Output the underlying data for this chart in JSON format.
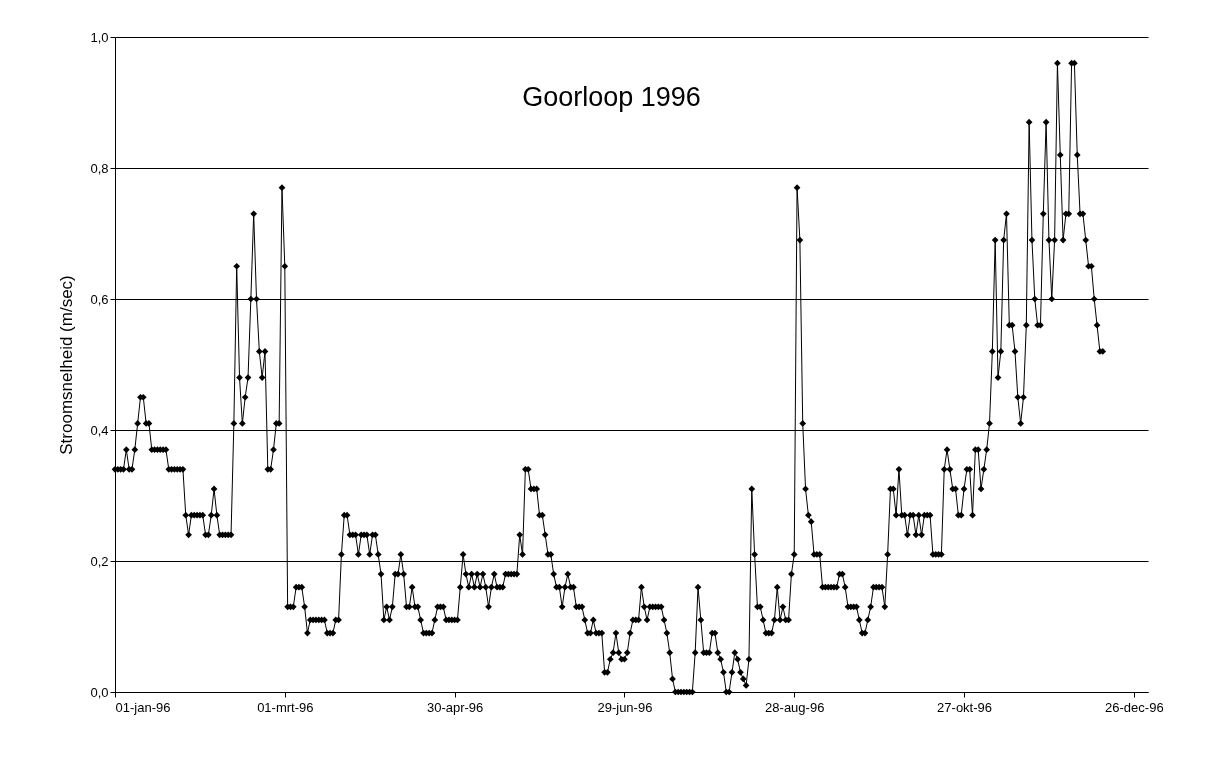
{
  "chart_data": {
    "type": "line",
    "title": "Goorloop 1996",
    "ylabel": "Stroomsnelheid (m/sec)",
    "xlim": [
      "1996-01-01",
      "1996-12-31"
    ],
    "xticks": [
      {
        "value": "1996-01-01",
        "label": "01-jan-96"
      },
      {
        "value": "1996-03-01",
        "label": "01-mrt-96"
      },
      {
        "value": "1996-04-30",
        "label": "30-apr-96"
      },
      {
        "value": "1996-06-29",
        "label": "29-jun-96"
      },
      {
        "value": "1996-08-28",
        "label": "28-aug-96"
      },
      {
        "value": "1996-10-27",
        "label": "27-okt-96"
      },
      {
        "value": "1996-12-26",
        "label": "26-dec-96"
      }
    ],
    "ylim": [
      0,
      1
    ],
    "yticks": [
      {
        "value": 0,
        "label": "0,0"
      },
      {
        "value": 0.2,
        "label": "0,2"
      },
      {
        "value": 0.4,
        "label": "0,4"
      },
      {
        "value": 0.6,
        "label": "0,6"
      },
      {
        "value": 0.8,
        "label": "0,8"
      },
      {
        "value": 1,
        "label": "1,0"
      }
    ],
    "grid": "y",
    "marker": "diamond",
    "line_style": "solid",
    "legend": false,
    "x": [
      "1996-01-01",
      "1996-01-02",
      "1996-01-03",
      "1996-01-04",
      "1996-01-05",
      "1996-01-06",
      "1996-01-07",
      "1996-01-08",
      "1996-01-09",
      "1996-01-10",
      "1996-01-11",
      "1996-01-12",
      "1996-01-13",
      "1996-01-14",
      "1996-01-15",
      "1996-01-16",
      "1996-01-17",
      "1996-01-18",
      "1996-01-19",
      "1996-01-20",
      "1996-01-21",
      "1996-01-22",
      "1996-01-23",
      "1996-01-24",
      "1996-01-25",
      "1996-01-26",
      "1996-01-27",
      "1996-01-28",
      "1996-01-29",
      "1996-01-30",
      "1996-01-31",
      "1996-02-01",
      "1996-02-02",
      "1996-02-03",
      "1996-02-04",
      "1996-02-05",
      "1996-02-06",
      "1996-02-07",
      "1996-02-08",
      "1996-02-09",
      "1996-02-10",
      "1996-02-11",
      "1996-02-12",
      "1996-02-13",
      "1996-02-14",
      "1996-02-15",
      "1996-02-16",
      "1996-02-17",
      "1996-02-18",
      "1996-02-19",
      "1996-02-20",
      "1996-02-21",
      "1996-02-22",
      "1996-02-23",
      "1996-02-24",
      "1996-02-25",
      "1996-02-26",
      "1996-02-27",
      "1996-02-28",
      "1996-02-29",
      "1996-03-01",
      "1996-03-02",
      "1996-03-03",
      "1996-03-04",
      "1996-03-05",
      "1996-03-06",
      "1996-03-07",
      "1996-03-08",
      "1996-03-09",
      "1996-03-10",
      "1996-03-11",
      "1996-03-12",
      "1996-03-13",
      "1996-03-14",
      "1996-03-15",
      "1996-03-16",
      "1996-03-17",
      "1996-03-18",
      "1996-03-19",
      "1996-03-20",
      "1996-03-21",
      "1996-03-22",
      "1996-03-23",
      "1996-03-24",
      "1996-03-25",
      "1996-03-26",
      "1996-03-27",
      "1996-03-28",
      "1996-03-29",
      "1996-03-30",
      "1996-03-31",
      "1996-04-01",
      "1996-04-02",
      "1996-04-03",
      "1996-04-04",
      "1996-04-05",
      "1996-04-06",
      "1996-04-07",
      "1996-04-08",
      "1996-04-09",
      "1996-04-10",
      "1996-04-11",
      "1996-04-12",
      "1996-04-13",
      "1996-04-14",
      "1996-04-15",
      "1996-04-16",
      "1996-04-17",
      "1996-04-18",
      "1996-04-19",
      "1996-04-20",
      "1996-04-21",
      "1996-04-22",
      "1996-04-23",
      "1996-04-24",
      "1996-04-25",
      "1996-04-26",
      "1996-04-27",
      "1996-04-28",
      "1996-04-29",
      "1996-04-30",
      "1996-05-01",
      "1996-05-02",
      "1996-05-03",
      "1996-05-04",
      "1996-05-05",
      "1996-05-06",
      "1996-05-07",
      "1996-05-08",
      "1996-05-09",
      "1996-05-10",
      "1996-05-11",
      "1996-05-12",
      "1996-05-13",
      "1996-05-14",
      "1996-05-15",
      "1996-05-16",
      "1996-05-17",
      "1996-05-18",
      "1996-05-19",
      "1996-05-20",
      "1996-05-21",
      "1996-05-22",
      "1996-05-23",
      "1996-05-24",
      "1996-05-25",
      "1996-05-26",
      "1996-05-27",
      "1996-05-28",
      "1996-05-29",
      "1996-05-30",
      "1996-05-31",
      "1996-06-01",
      "1996-06-02",
      "1996-06-03",
      "1996-06-04",
      "1996-06-05",
      "1996-06-06",
      "1996-06-07",
      "1996-06-08",
      "1996-06-09",
      "1996-06-10",
      "1996-06-11",
      "1996-06-12",
      "1996-06-13",
      "1996-06-14",
      "1996-06-15",
      "1996-06-16",
      "1996-06-17",
      "1996-06-18",
      "1996-06-19",
      "1996-06-20",
      "1996-06-21",
      "1996-06-22",
      "1996-06-23",
      "1996-06-24",
      "1996-06-25",
      "1996-06-26",
      "1996-06-27",
      "1996-06-28",
      "1996-06-29",
      "1996-06-30",
      "1996-07-01",
      "1996-07-02",
      "1996-07-03",
      "1996-07-04",
      "1996-07-05",
      "1996-07-06",
      "1996-07-07",
      "1996-07-08",
      "1996-07-09",
      "1996-07-10",
      "1996-07-11",
      "1996-07-12",
      "1996-07-13",
      "1996-07-14",
      "1996-07-15",
      "1996-07-16",
      "1996-07-17",
      "1996-07-18",
      "1996-07-19",
      "1996-07-20",
      "1996-07-21",
      "1996-07-22",
      "1996-07-23",
      "1996-07-24",
      "1996-07-25",
      "1996-07-26",
      "1996-07-27",
      "1996-07-28",
      "1996-07-29",
      "1996-07-30",
      "1996-07-31",
      "1996-08-01",
      "1996-08-02",
      "1996-08-03",
      "1996-08-04",
      "1996-08-05",
      "1996-08-06",
      "1996-08-07",
      "1996-08-08",
      "1996-08-09",
      "1996-08-10",
      "1996-08-11",
      "1996-08-12",
      "1996-08-13",
      "1996-08-14",
      "1996-08-15",
      "1996-08-16",
      "1996-08-17",
      "1996-08-18",
      "1996-08-19",
      "1996-08-20",
      "1996-08-21",
      "1996-08-22",
      "1996-08-23",
      "1996-08-24",
      "1996-08-25",
      "1996-08-26",
      "1996-08-27",
      "1996-08-28",
      "1996-08-29",
      "1996-08-30",
      "1996-08-31",
      "1996-09-01",
      "1996-09-02",
      "1996-09-03",
      "1996-09-04",
      "1996-09-05",
      "1996-09-06",
      "1996-09-07",
      "1996-09-08",
      "1996-09-09",
      "1996-09-10",
      "1996-09-11",
      "1996-09-12",
      "1996-09-13",
      "1996-09-14",
      "1996-09-15",
      "1996-09-16",
      "1996-09-17",
      "1996-09-18",
      "1996-09-19",
      "1996-09-20",
      "1996-09-21",
      "1996-09-22",
      "1996-09-23",
      "1996-09-24",
      "1996-09-25",
      "1996-09-26",
      "1996-09-27",
      "1996-09-28",
      "1996-09-29",
      "1996-09-30",
      "1996-10-01",
      "1996-10-02",
      "1996-10-03",
      "1996-10-04",
      "1996-10-05",
      "1996-10-06",
      "1996-10-07",
      "1996-10-08",
      "1996-10-09",
      "1996-10-10",
      "1996-10-11",
      "1996-10-12",
      "1996-10-13",
      "1996-10-14",
      "1996-10-15",
      "1996-10-16",
      "1996-10-17",
      "1996-10-18",
      "1996-10-19",
      "1996-10-20",
      "1996-10-21",
      "1996-10-22",
      "1996-10-23",
      "1996-10-24",
      "1996-10-25",
      "1996-10-26",
      "1996-10-27",
      "1996-10-28",
      "1996-10-29",
      "1996-10-30",
      "1996-10-31",
      "1996-11-01",
      "1996-11-02",
      "1996-11-03",
      "1996-11-04",
      "1996-11-05",
      "1996-11-06",
      "1996-11-07",
      "1996-11-08",
      "1996-11-09",
      "1996-11-10",
      "1996-11-11",
      "1996-11-12",
      "1996-11-13",
      "1996-11-14",
      "1996-11-15",
      "1996-11-16",
      "1996-11-17",
      "1996-11-18",
      "1996-11-19",
      "1996-11-20",
      "1996-11-21",
      "1996-11-22",
      "1996-11-23",
      "1996-11-24",
      "1996-11-25",
      "1996-11-26",
      "1996-11-27",
      "1996-11-28",
      "1996-11-29",
      "1996-11-30",
      "1996-12-01",
      "1996-12-02",
      "1996-12-03",
      "1996-12-04",
      "1996-12-05",
      "1996-12-06",
      "1996-12-07",
      "1996-12-08",
      "1996-12-09",
      "1996-12-10",
      "1996-12-11",
      "1996-12-12",
      "1996-12-13",
      "1996-12-14",
      "1996-12-15"
    ],
    "series": [
      {
        "color": "#000000",
        "values": [
          0.34,
          0.34,
          0.34,
          0.34,
          0.37,
          0.34,
          0.34,
          0.37,
          0.41,
          0.45,
          0.45,
          0.41,
          0.41,
          0.37,
          0.37,
          0.37,
          0.37,
          0.37,
          0.37,
          0.34,
          0.34,
          0.34,
          0.34,
          0.34,
          0.34,
          0.27,
          0.24,
          0.27,
          0.27,
          0.27,
          0.27,
          0.27,
          0.24,
          0.24,
          0.27,
          0.31,
          0.27,
          0.24,
          0.24,
          0.24,
          0.24,
          0.24,
          0.41,
          0.65,
          0.48,
          0.41,
          0.45,
          0.48,
          0.6,
          0.73,
          0.6,
          0.52,
          0.48,
          0.52,
          0.34,
          0.34,
          0.37,
          0.41,
          0.41,
          0.77,
          0.65,
          0.13,
          0.13,
          0.13,
          0.16,
          0.16,
          0.16,
          0.13,
          0.09,
          0.11,
          0.11,
          0.11,
          0.11,
          0.11,
          0.11,
          0.09,
          0.09,
          0.09,
          0.11,
          0.11,
          0.21,
          0.27,
          0.27,
          0.24,
          0.24,
          0.24,
          0.21,
          0.24,
          0.24,
          0.24,
          0.21,
          0.24,
          0.24,
          0.21,
          0.18,
          0.11,
          0.13,
          0.11,
          0.13,
          0.18,
          0.18,
          0.21,
          0.18,
          0.13,
          0.13,
          0.16,
          0.13,
          0.13,
          0.11,
          0.09,
          0.09,
          0.09,
          0.09,
          0.11,
          0.13,
          0.13,
          0.13,
          0.11,
          0.11,
          0.11,
          0.11,
          0.11,
          0.16,
          0.21,
          0.18,
          0.16,
          0.18,
          0.16,
          0.18,
          0.16,
          0.18,
          0.16,
          0.13,
          0.16,
          0.18,
          0.16,
          0.16,
          0.16,
          0.18,
          0.18,
          0.18,
          0.18,
          0.18,
          0.24,
          0.21,
          0.34,
          0.34,
          0.31,
          0.31,
          0.31,
          0.27,
          0.27,
          0.24,
          0.21,
          0.21,
          0.18,
          0.16,
          0.16,
          0.13,
          0.16,
          0.18,
          0.16,
          0.16,
          0.13,
          0.13,
          0.13,
          0.11,
          0.09,
          0.09,
          0.11,
          0.09,
          0.09,
          0.09,
          0.03,
          0.03,
          0.05,
          0.06,
          0.09,
          0.06,
          0.05,
          0.05,
          0.06,
          0.09,
          0.11,
          0.11,
          0.11,
          0.16,
          0.13,
          0.11,
          0.13,
          0.13,
          0.13,
          0.13,
          0.13,
          0.11,
          0.09,
          0.06,
          0.02,
          0,
          0,
          0,
          0,
          0,
          0,
          0,
          0.06,
          0.16,
          0.11,
          0.06,
          0.06,
          0.06,
          0.09,
          0.09,
          0.06,
          0.05,
          0.03,
          0,
          0,
          0.03,
          0.06,
          0.05,
          0.03,
          0.02,
          0.01,
          0.05,
          0.31,
          0.21,
          0.13,
          0.13,
          0.11,
          0.09,
          0.09,
          0.09,
          0.11,
          0.16,
          0.11,
          0.13,
          0.11,
          0.11,
          0.18,
          0.21,
          0.77,
          0.69,
          0.41,
          0.31,
          0.27,
          0.26,
          0.21,
          0.21,
          0.21,
          0.16,
          0.16,
          0.16,
          0.16,
          0.16,
          0.16,
          0.18,
          0.18,
          0.16,
          0.13,
          0.13,
          0.13,
          0.13,
          0.11,
          0.09,
          0.09,
          0.11,
          0.13,
          0.16,
          0.16,
          0.16,
          0.16,
          0.13,
          0.21,
          0.31,
          0.31,
          0.27,
          0.34,
          0.27,
          0.27,
          0.24,
          0.27,
          0.27,
          0.24,
          0.27,
          0.24,
          0.27,
          0.27,
          0.27,
          0.21,
          0.21,
          0.21,
          0.21,
          0.34,
          0.37,
          0.34,
          0.31,
          0.31,
          0.27,
          0.27,
          0.31,
          0.34,
          0.34,
          0.27,
          0.37,
          0.37,
          0.31,
          0.34,
          0.37,
          0.41,
          0.52,
          0.69,
          0.48,
          0.52,
          0.69,
          0.73,
          0.56,
          0.56,
          0.52,
          0.45,
          0.41,
          0.45,
          0.56,
          0.87,
          0.69,
          0.6,
          0.56,
          0.56,
          0.73,
          0.87,
          0.69,
          0.6,
          0.69,
          0.96,
          0.82,
          0.69,
          0.73,
          0.73,
          0.96,
          0.96,
          0.82,
          0.73,
          0.73,
          0.69,
          0.65,
          0.65,
          0.6,
          0.56,
          0.52,
          0.52
        ]
      }
    ]
  }
}
